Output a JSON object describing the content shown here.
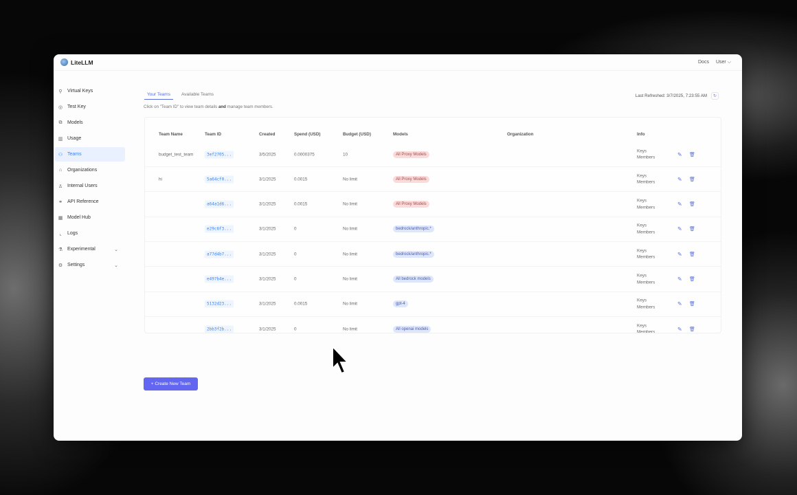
{
  "app": {
    "name": "LiteLLM"
  },
  "header": {
    "docs": "Docs",
    "user": "User"
  },
  "sidebar": {
    "items": [
      {
        "label": "Virtual Keys",
        "icon": "key-icon",
        "glyph": "⚲"
      },
      {
        "label": "Test Key",
        "icon": "play-circle-icon",
        "glyph": "◎"
      },
      {
        "label": "Models",
        "icon": "block-icon",
        "glyph": "⧉"
      },
      {
        "label": "Usage",
        "icon": "bar-chart-icon",
        "glyph": "▥"
      },
      {
        "label": "Teams",
        "icon": "team-icon",
        "glyph": "⚇",
        "active": true
      },
      {
        "label": "Organizations",
        "icon": "bank-icon",
        "glyph": "⌂"
      },
      {
        "label": "Internal Users",
        "icon": "user-icon",
        "glyph": "♙"
      },
      {
        "label": "API Reference",
        "icon": "api-icon",
        "glyph": "⚭"
      },
      {
        "label": "Model Hub",
        "icon": "appstore-icon",
        "glyph": "▦"
      },
      {
        "label": "Logs",
        "icon": "line-chart-icon",
        "glyph": "⌞"
      },
      {
        "label": "Experimental",
        "icon": "experiment-icon",
        "glyph": "⚗",
        "chevron": true
      },
      {
        "label": "Settings",
        "icon": "settings-icon",
        "glyph": "⚙",
        "chevron": true
      }
    ]
  },
  "tabs": [
    "Your Teams",
    "Available Teams"
  ],
  "description": {
    "pre": "Click on \"Team ID\" to view team details ",
    "bold": "and",
    "post": " manage team members."
  },
  "refresh": {
    "label": "Last Refreshed: 3/7/2025, 7:23:55 AM"
  },
  "table": {
    "headers": [
      "Team Name",
      "Team ID",
      "Created",
      "Spend (USD)",
      "Budget (USD)",
      "Models",
      "Organization",
      "Info"
    ],
    "info": {
      "keys": "Keys",
      "members": "Members"
    },
    "rows": [
      {
        "name": "budget_test_team",
        "id": "3ef2705...",
        "created": "3/5/2025",
        "spend": "0.0000375",
        "budget": "10",
        "model": "All Proxy Models",
        "model_color": "red"
      },
      {
        "name": "hi",
        "id": "5a64cf0...",
        "created": "3/1/2025",
        "spend": "0.0015",
        "budget": "No limit",
        "model": "All Proxy Models",
        "model_color": "red"
      },
      {
        "name": "",
        "id": "a64a1d6...",
        "created": "3/1/2025",
        "spend": "0.0015",
        "budget": "No limit",
        "model": "All Proxy Models",
        "model_color": "red"
      },
      {
        "name": "",
        "id": "e29c6f3...",
        "created": "3/1/2025",
        "spend": "0",
        "budget": "No limit",
        "model": "bedrock/anthropic.*",
        "model_color": "blue"
      },
      {
        "name": "",
        "id": "a77d4b7...",
        "created": "3/1/2025",
        "spend": "0",
        "budget": "No limit",
        "model": "bedrock/anthropic.*",
        "model_color": "blue"
      },
      {
        "name": "",
        "id": "e497b4e...",
        "created": "3/1/2025",
        "spend": "0",
        "budget": "No limit",
        "model": "All bedrock models",
        "model_color": "blue"
      },
      {
        "name": "",
        "id": "5132d23...",
        "created": "3/1/2025",
        "spend": "0.0015",
        "budget": "No limit",
        "model": "gpt-4",
        "model_color": "blue"
      },
      {
        "name": "",
        "id": "2bb3f2b...",
        "created": "3/1/2025",
        "spend": "0",
        "budget": "No limit",
        "model": "All openai models",
        "model_color": "blue"
      }
    ]
  },
  "create_button": "+ Create New Team",
  "colors": {
    "accent": "#6366f1",
    "active_bg": "#e8f1fd",
    "link": "#3b82f6"
  }
}
